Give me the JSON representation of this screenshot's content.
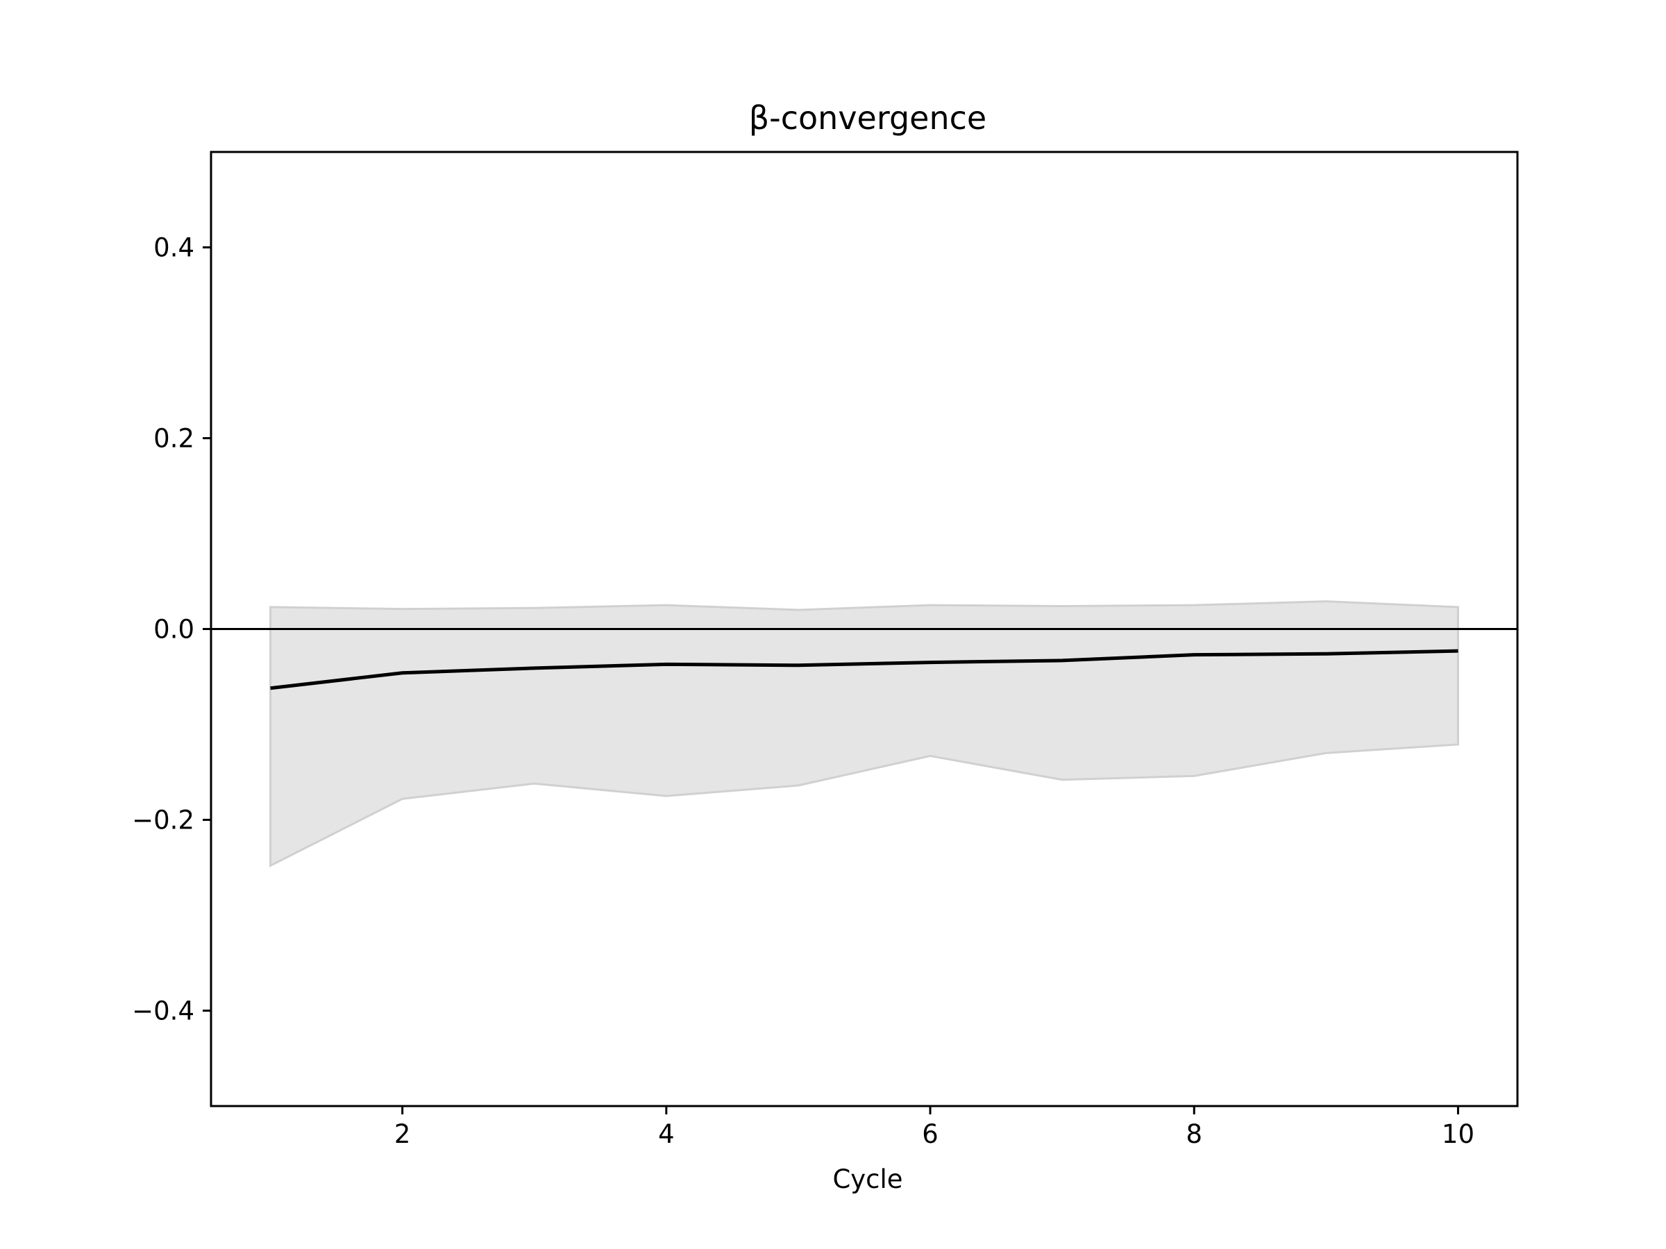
{
  "chart_data": {
    "type": "line",
    "title": "β-convergence",
    "xlabel": "Cycle",
    "ylabel": "",
    "xlim": [
      0.55,
      10.45
    ],
    "ylim": [
      -0.5,
      0.5
    ],
    "xticks": [
      2,
      4,
      6,
      8,
      10
    ],
    "xtick_labels": [
      "2",
      "4",
      "6",
      "8",
      "10"
    ],
    "yticks": [
      -0.4,
      -0.2,
      0.0,
      0.2,
      0.4
    ],
    "ytick_labels": [
      "−0.4",
      "−0.2",
      "0.0",
      "0.2",
      "0.4"
    ],
    "grid": false,
    "legend": "none",
    "reference_line_y": 0.0,
    "x": [
      1,
      2,
      3,
      4,
      5,
      6,
      7,
      8,
      9,
      10
    ],
    "series": [
      {
        "values": [
          -0.062,
          -0.046,
          -0.041,
          -0.037,
          -0.038,
          -0.035,
          -0.033,
          -0.027,
          -0.026,
          -0.023
        ],
        "color": "#000000"
      }
    ],
    "band": {
      "upper": [
        0.023,
        0.021,
        0.022,
        0.025,
        0.02,
        0.025,
        0.024,
        0.025,
        0.029,
        0.023
      ],
      "lower": [
        -0.248,
        -0.178,
        -0.162,
        -0.175,
        -0.164,
        -0.133,
        -0.158,
        -0.154,
        -0.13,
        -0.121
      ],
      "color": "#e5e5e5",
      "edge_color": "#d0d0d0"
    }
  }
}
